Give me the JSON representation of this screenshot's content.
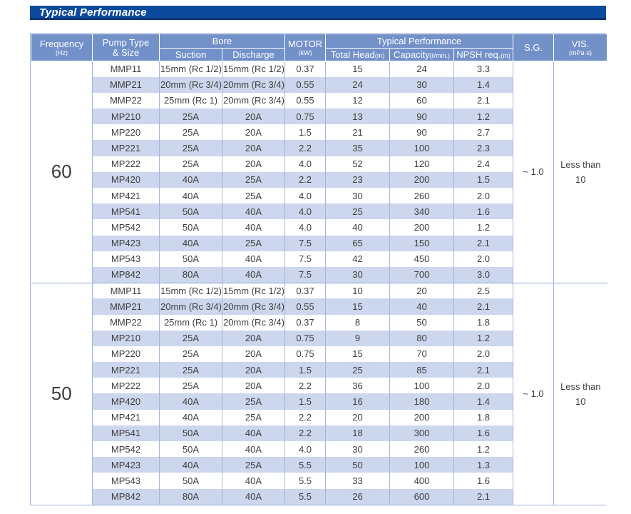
{
  "title": "Typical Performance",
  "colors": {
    "title_bar": "#0c4a9e",
    "title_bar_edge": "#0a3473",
    "header_bg": "#7391c9",
    "stripe_bg": "#ccd6ec",
    "grid_border": "#a3b5da",
    "text": "#3f3f3f"
  },
  "header": {
    "frequency": "Frequency",
    "frequency_unit": "(Hz)",
    "pump_type_line1": "Pump Type",
    "pump_type_line2": "& Size",
    "bore": "Bore",
    "suction": "Suction",
    "discharge": "Discharge",
    "motor": "MOTOR",
    "motor_unit": "(kW)",
    "typical_performance": "Typical Performance",
    "total_head": "Total Head",
    "total_head_unit": "(m)",
    "capacity": "Capacity",
    "capacity_unit": "(ℓ/min.)",
    "npsh": "NPSH req.",
    "npsh_unit": "(m)",
    "sg": "S.G.",
    "vis": "VIS.",
    "vis_unit": "(mPa·s)"
  },
  "groups": [
    {
      "frequency": "60",
      "sg": "~ 1.0",
      "vis_line1": "Less than",
      "vis_line2": "10",
      "rows": [
        [
          "MMP11",
          "15mm (Rc 1/2)",
          "15mm (Rc 1/2)",
          "0.37",
          "15",
          "24",
          "3.3"
        ],
        [
          "MMP21",
          "20mm (Rc 3/4)",
          "20mm (Rc 3/4)",
          "0.55",
          "24",
          "30",
          "1.4"
        ],
        [
          "MMP22",
          "25mm (Rc 1)",
          "20mm (Rc 3/4)",
          "0.55",
          "12",
          "60",
          "2.1"
        ],
        [
          "MP210",
          "25A",
          "20A",
          "0.75",
          "13",
          "90",
          "1.2"
        ],
        [
          "MP220",
          "25A",
          "20A",
          "1.5",
          "21",
          "90",
          "2.7"
        ],
        [
          "MP221",
          "25A",
          "20A",
          "2.2",
          "35",
          "100",
          "2.3"
        ],
        [
          "MP222",
          "25A",
          "20A",
          "4.0",
          "52",
          "120",
          "2.4"
        ],
        [
          "MP420",
          "40A",
          "25A",
          "2.2",
          "23",
          "200",
          "1.5"
        ],
        [
          "MP421",
          "40A",
          "25A",
          "4.0",
          "30",
          "260",
          "2.0"
        ],
        [
          "MP541",
          "50A",
          "40A",
          "4.0",
          "25",
          "340",
          "1.6"
        ],
        [
          "MP542",
          "50A",
          "40A",
          "4.0",
          "40",
          "200",
          "1.2"
        ],
        [
          "MP423",
          "40A",
          "25A",
          "7.5",
          "65",
          "150",
          "2.1"
        ],
        [
          "MP543",
          "50A",
          "40A",
          "7.5",
          "42",
          "450",
          "2.0"
        ],
        [
          "MP842",
          "80A",
          "40A",
          "7.5",
          "30",
          "700",
          "3.0"
        ]
      ]
    },
    {
      "frequency": "50",
      "sg": "~ 1.0",
      "vis_line1": "Less than",
      "vis_line2": "10",
      "rows": [
        [
          "MMP11",
          "15mm (Rc 1/2)",
          "15mm (Rc 1/2)",
          "0.37",
          "10",
          "20",
          "2.5"
        ],
        [
          "MMP21",
          "20mm (Rc 3/4)",
          "20mm (Rc 3/4)",
          "0.55",
          "15",
          "40",
          "2.1"
        ],
        [
          "MMP22",
          "25mm (Rc 1)",
          "20mm (Rc 3/4)",
          "0.37",
          "8",
          "50",
          "1.8"
        ],
        [
          "MP210",
          "25A",
          "20A",
          "0.75",
          "9",
          "80",
          "1.2"
        ],
        [
          "MP220",
          "25A",
          "20A",
          "0.75",
          "15",
          "70",
          "2.0"
        ],
        [
          "MP221",
          "25A",
          "20A",
          "1.5",
          "25",
          "85",
          "2.1"
        ],
        [
          "MP222",
          "25A",
          "20A",
          "2.2",
          "36",
          "100",
          "2.0"
        ],
        [
          "MP420",
          "40A",
          "25A",
          "1.5",
          "16",
          "180",
          "1.4"
        ],
        [
          "MP421",
          "40A",
          "25A",
          "2.2",
          "20",
          "200",
          "1.8"
        ],
        [
          "MP541",
          "50A",
          "40A",
          "2.2",
          "18",
          "300",
          "1.6"
        ],
        [
          "MP542",
          "50A",
          "40A",
          "4.0",
          "30",
          "260",
          "1.2"
        ],
        [
          "MP423",
          "40A",
          "25A",
          "5.5",
          "50",
          "100",
          "1.3"
        ],
        [
          "MP543",
          "50A",
          "40A",
          "5.5",
          "33",
          "400",
          "1.6"
        ],
        [
          "MP842",
          "80A",
          "40A",
          "5.5",
          "26",
          "600",
          "2.1"
        ]
      ]
    }
  ]
}
